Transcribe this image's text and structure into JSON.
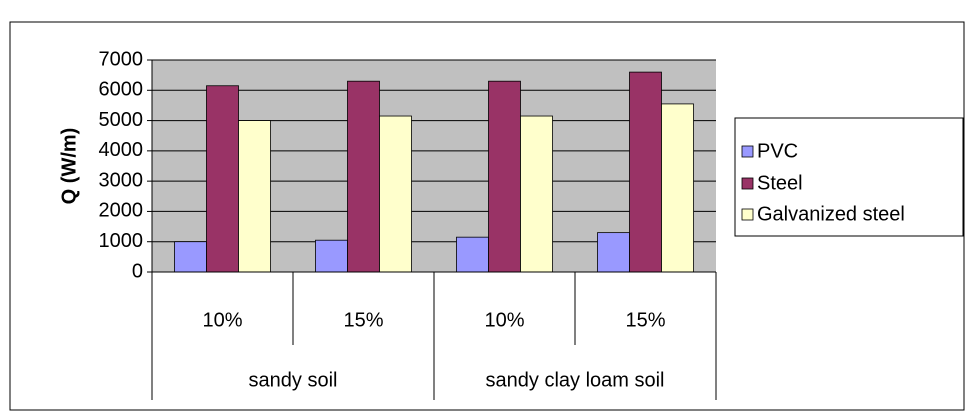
{
  "chart_data": {
    "type": "bar",
    "y_label": "Q (W/m)",
    "groups": [
      {
        "label": "sandy soil",
        "categories": [
          "10%",
          "15%"
        ]
      },
      {
        "label": "sandy clay loam soil",
        "categories": [
          "10%",
          "15%"
        ]
      }
    ],
    "series": [
      {
        "name": "PVC",
        "color": "#9999ff",
        "values": [
          1000,
          1050,
          1150,
          1300
        ]
      },
      {
        "name": "Steel",
        "color": "#993366",
        "values": [
          6150,
          6300,
          6300,
          6600
        ]
      },
      {
        "name": "Galvanized steel",
        "color": "#ffffcc",
        "values": [
          5000,
          5150,
          5150,
          5550
        ]
      }
    ],
    "ylim": [
      0,
      7000
    ],
    "yticks": [
      0,
      1000,
      2000,
      3000,
      4000,
      5000,
      6000,
      7000
    ],
    "grid": true,
    "legend": "right"
  }
}
